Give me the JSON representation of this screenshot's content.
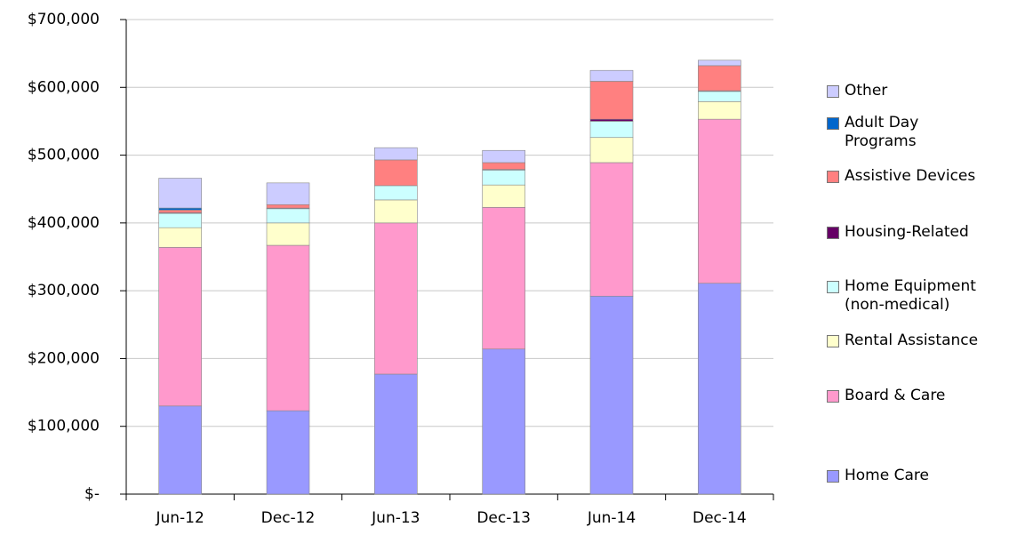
{
  "chart_data": {
    "type": "stacked-bar",
    "categories": [
      "Jun-12",
      "Dec-12",
      "Jun-13",
      "Dec-13",
      "Jun-14",
      "Dec-14"
    ],
    "series": [
      {
        "name": "Home Care",
        "color": "#9999ff",
        "values": [
          130000,
          123000,
          177000,
          214000,
          292000,
          311000
        ]
      },
      {
        "name": "Board & Care",
        "color": "#ff99cc",
        "values": [
          234000,
          244000,
          223000,
          209000,
          197000,
          242000
        ]
      },
      {
        "name": "Rental Assistance",
        "color": "#ffffcc",
        "values": [
          29000,
          33000,
          34000,
          33000,
          37000,
          26000
        ]
      },
      {
        "name": "Home Equipment (non-medical)",
        "color": "#ccffff",
        "values": [
          21000,
          21000,
          21000,
          22000,
          24000,
          15000
        ]
      },
      {
        "name": "Housing-Related",
        "color": "#660066",
        "values": [
          1000,
          1000,
          0,
          1000,
          3000,
          1000
        ]
      },
      {
        "name": "Assistive Devices",
        "color": "#ff8080",
        "values": [
          4000,
          5000,
          38000,
          10000,
          56000,
          37000
        ]
      },
      {
        "name": "Adult Day Programs",
        "color": "#0066cc",
        "values": [
          3000,
          0,
          0,
          0,
          0,
          0
        ]
      },
      {
        "name": "Other",
        "color": "#ccccff",
        "values": [
          44000,
          32000,
          18000,
          18000,
          16000,
          8000
        ]
      }
    ],
    "ylim": [
      0,
      700000
    ],
    "yticks": [
      {
        "value": 0,
        "label": "$-"
      },
      {
        "value": 100000,
        "label": "$100,000"
      },
      {
        "value": 200000,
        "label": "$200,000"
      },
      {
        "value": 300000,
        "label": "$300,000"
      },
      {
        "value": 400000,
        "label": "$400,000"
      },
      {
        "value": 500000,
        "label": "$500,000"
      },
      {
        "value": 600000,
        "label": "$600,000"
      },
      {
        "value": 700000,
        "label": "$700,000"
      }
    ],
    "grid": true
  }
}
